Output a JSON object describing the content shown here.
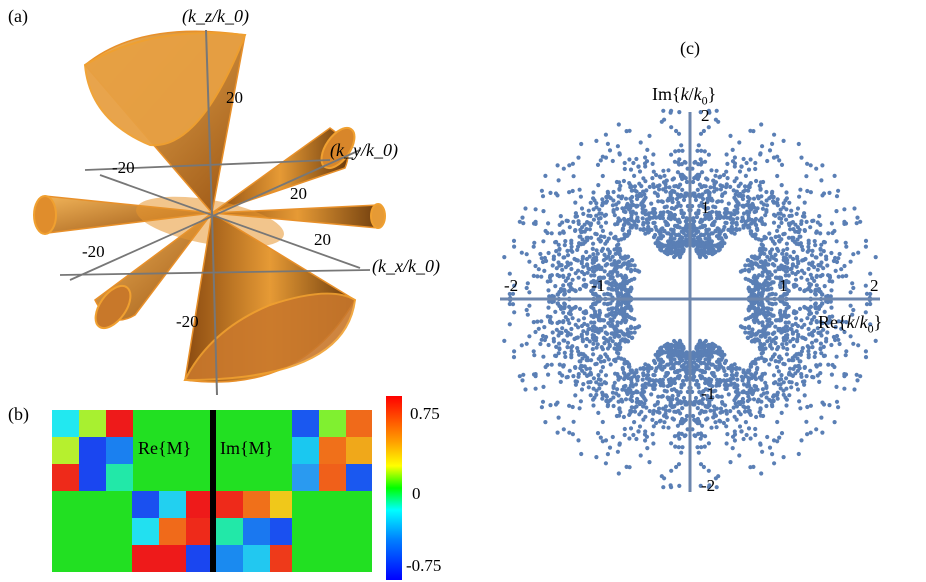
{
  "panel_a": {
    "label": "(a)",
    "axes": {
      "z": "(k_z/k_0)",
      "y": "(k_y/k_0)",
      "x": "(k_x/k_0)"
    },
    "ticks": {
      "z_pos": "20",
      "z_neg": "-20",
      "y_pos": "20",
      "y_neg": "-20",
      "x_pos": "20",
      "x_neg": "-20"
    },
    "surface_color": "#f0a030"
  },
  "panel_b": {
    "label": "(b)",
    "re_label": "Re{M}",
    "im_label": "Im{M}",
    "colorbar": {
      "max": "0.75",
      "mid": "0",
      "min": "-0.75"
    }
  },
  "panel_c": {
    "label": "(c)",
    "point_color": "#5a7fb5",
    "chart_data": {
      "type": "scatter",
      "xlabel": "Re{k/k0}",
      "ylabel": "Im{k/k0}",
      "xlim": [
        -2,
        2
      ],
      "ylim": [
        -2,
        2
      ],
      "x_ticks": [
        "-2",
        "-1",
        "1",
        "2"
      ],
      "y_ticks": [
        "2",
        "1",
        "-1",
        "-2"
      ],
      "description_values": "points symmetric in four quadrants, concentrated near |Re|≈1 and |Im|≈1 with a scattered halo to radius ≈2"
    }
  }
}
